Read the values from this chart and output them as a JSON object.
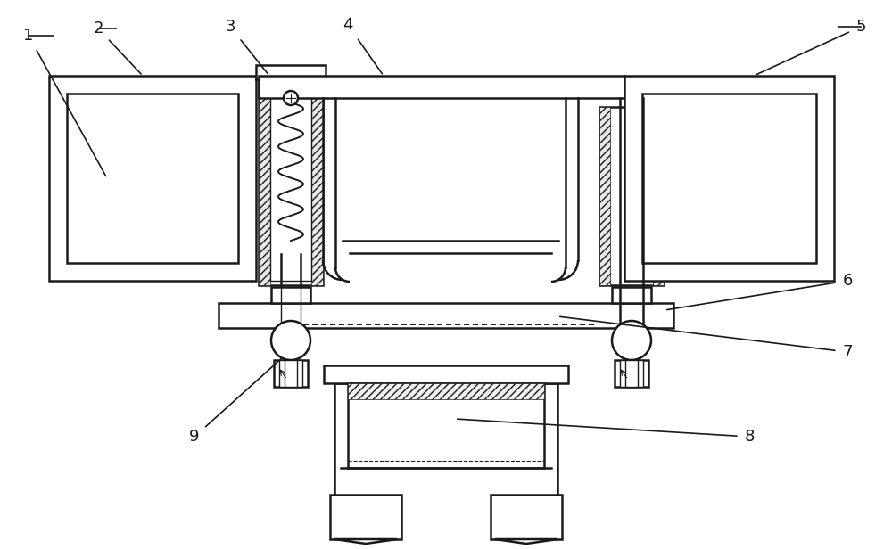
{
  "bg_color": "#ffffff",
  "line_color": "#1a1a1a",
  "figsize": [
    10.0,
    6.16
  ],
  "dpi": 100,
  "label_fontsize": 13
}
